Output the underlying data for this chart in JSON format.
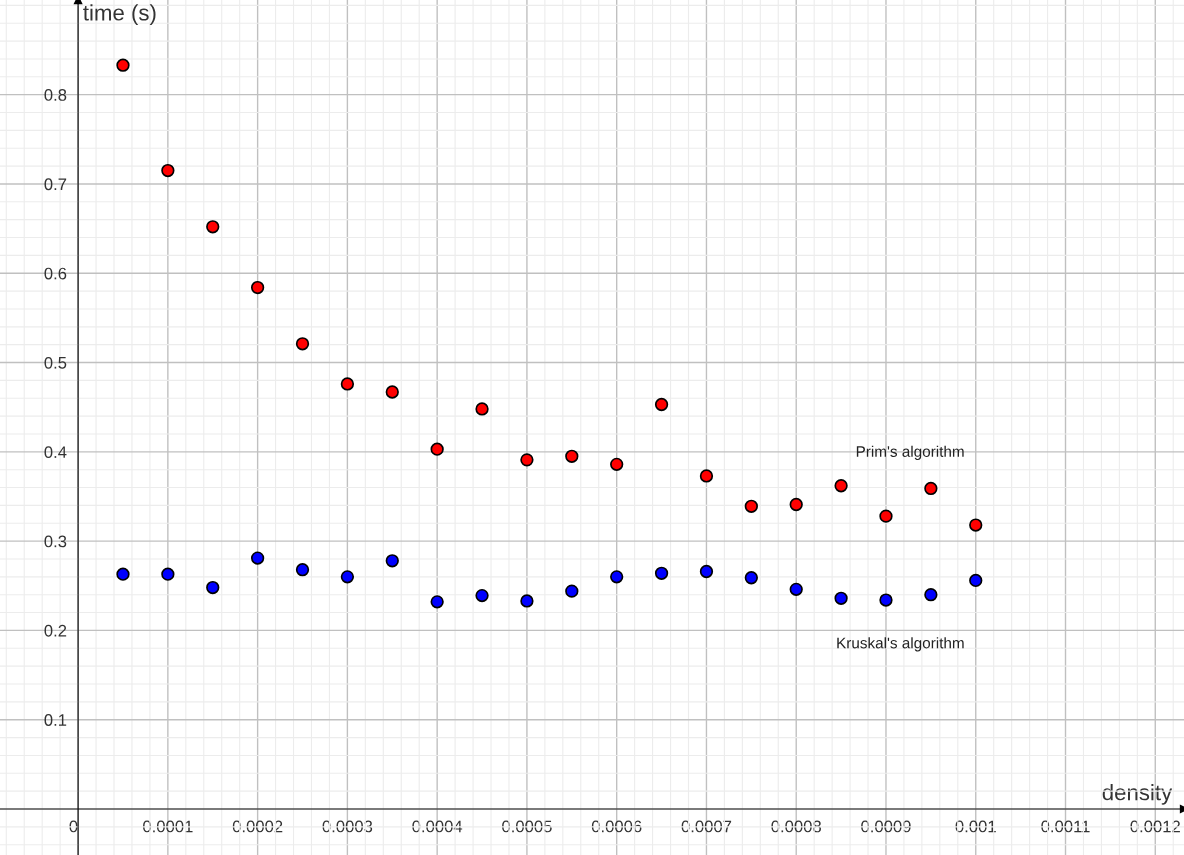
{
  "chart_data": {
    "type": "scatter",
    "xlabel": "density",
    "ylabel": "time (s)",
    "x": [
      5e-05,
      0.0001,
      0.00015,
      0.0002,
      0.00025,
      0.0003,
      0.00035,
      0.0004,
      0.00045,
      0.0005,
      0.00055,
      0.0006,
      0.00065,
      0.0007,
      0.00075,
      0.0008,
      0.00085,
      0.0009,
      0.00095,
      0.001
    ],
    "series": [
      {
        "name": "Prim's algorithm",
        "color": "#ff0000",
        "values": [
          0.833,
          0.715,
          0.652,
          0.584,
          0.521,
          0.476,
          0.467,
          0.403,
          0.448,
          0.391,
          0.395,
          0.386,
          0.453,
          0.373,
          0.339,
          0.341,
          0.362,
          0.328,
          0.359,
          0.318
        ]
      },
      {
        "name": "Kruskal's algorithm",
        "color": "#0000ff",
        "values": [
          0.263,
          0.263,
          0.248,
          0.281,
          0.268,
          0.26,
          0.278,
          0.232,
          0.239,
          0.233,
          0.244,
          0.26,
          0.264,
          0.266,
          0.259,
          0.246,
          0.236,
          0.234,
          0.24,
          0.256
        ]
      }
    ],
    "xlim": [
      -8.7e-05,
      0.001232
    ],
    "ylim": [
      -0.0515,
      0.906
    ],
    "xticks": [
      0,
      0.0001,
      0.0002,
      0.0003,
      0.0004,
      0.0005,
      0.0006,
      0.0007,
      0.0008,
      0.0009,
      0.001,
      0.0011,
      0.0012
    ],
    "yticks": [
      0.1,
      0.2,
      0.3,
      0.4,
      0.5,
      0.6,
      0.7,
      0.8
    ],
    "grid": true,
    "marker": "circle",
    "legend": false
  }
}
